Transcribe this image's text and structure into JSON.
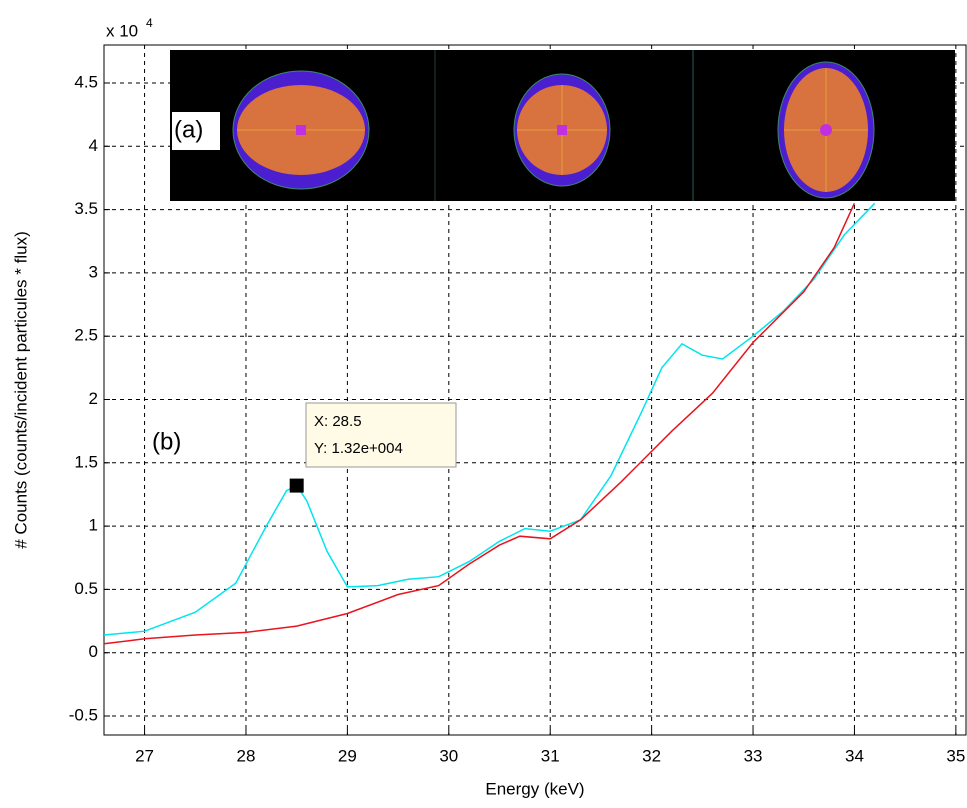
{
  "chart_data": {
    "type": "line",
    "xlabel": "Energy (keV)",
    "ylabel": "# Counts (counts/incident particules * flux)",
    "y_scale_label": "x 10",
    "y_scale_power": "4",
    "annotations": [
      "(a)",
      "(b)"
    ],
    "datatip": {
      "x_label": "X: 28.5",
      "y_label": "Y: 1.32e+004",
      "x": 28.5,
      "y": 1.32
    },
    "xlim": [
      26.6,
      35.1
    ],
    "ylim": [
      -0.65,
      4.8
    ],
    "xticks": [
      27,
      28,
      29,
      30,
      31,
      32,
      33,
      34,
      35
    ],
    "yticks": [
      -0.5,
      0,
      0.5,
      1,
      1.5,
      2,
      2.5,
      3,
      3.5,
      4,
      4.5
    ],
    "grid": true,
    "series": [
      {
        "color": "#00e5ee",
        "x": [
          26.6,
          27,
          27.5,
          27.9,
          28.2,
          28.4,
          28.5,
          28.6,
          28.8,
          29,
          29.3,
          29.6,
          29.9,
          30.2,
          30.5,
          30.75,
          31,
          31.3,
          31.6,
          31.9,
          32.1,
          32.3,
          32.5,
          32.7,
          33,
          33.3,
          33.6,
          33.9,
          34.2
        ],
        "values": [
          0.14,
          0.17,
          0.32,
          0.55,
          1.0,
          1.28,
          1.32,
          1.2,
          0.8,
          0.52,
          0.53,
          0.58,
          0.6,
          0.72,
          0.88,
          0.98,
          0.96,
          1.05,
          1.4,
          1.9,
          2.25,
          2.44,
          2.35,
          2.32,
          2.5,
          2.7,
          2.95,
          3.3,
          3.55
        ]
      },
      {
        "color": "#e8141e",
        "x": [
          26.6,
          27,
          27.5,
          28,
          28.5,
          29,
          29.5,
          29.9,
          30.2,
          30.5,
          30.7,
          31,
          31.3,
          31.7,
          32.2,
          32.6,
          33,
          33.5,
          33.8,
          34
        ],
        "values": [
          0.07,
          0.11,
          0.14,
          0.16,
          0.21,
          0.31,
          0.46,
          0.53,
          0.7,
          0.85,
          0.92,
          0.9,
          1.05,
          1.35,
          1.75,
          2.05,
          2.45,
          2.85,
          3.2,
          3.55
        ]
      }
    ]
  }
}
